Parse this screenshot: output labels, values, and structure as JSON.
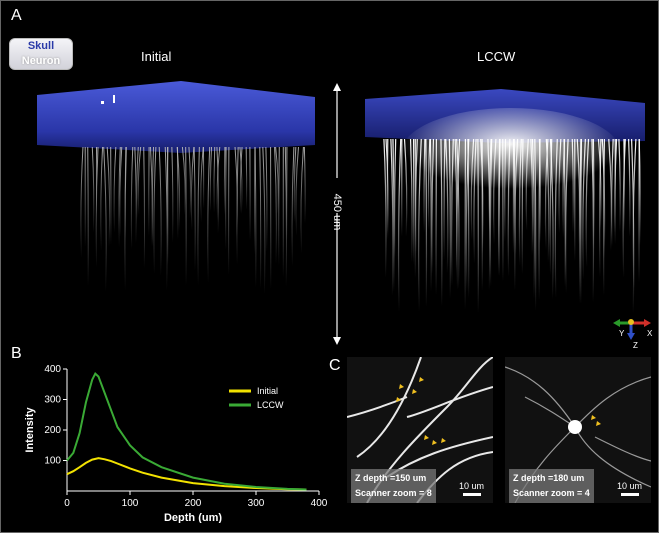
{
  "figure": {
    "panel_a": {
      "letter": "A",
      "legend": {
        "skull": "Skull",
        "neuron": "Neuron"
      },
      "initial_title": "Initial",
      "lccw_title": "LCCW",
      "depth_label": "450 um",
      "axes_icon": {
        "x": "X",
        "y": "Y",
        "z": "Z"
      },
      "colors": {
        "skull": "#2a36a8",
        "neuron": "#ffffff"
      }
    },
    "panel_b": {
      "letter": "B"
    },
    "panel_c": {
      "letter": "C",
      "left": {
        "line1": "Z depth =150 um",
        "line2": "Scanner zoom = 8",
        "scale": "10 um"
      },
      "right": {
        "line1": "Z depth =180 um",
        "line2": "Scanner zoom = 4",
        "scale": "10 um"
      }
    }
  },
  "chart_data": {
    "type": "line",
    "title": "",
    "xlabel": "Depth (um)",
    "ylabel": "Intensity",
    "xlim": [
      0,
      400
    ],
    "ylim": [
      0,
      400
    ],
    "xticks": [
      0,
      100,
      200,
      300,
      400
    ],
    "yticks": [
      100,
      200,
      300,
      400
    ],
    "legend_position": "top-right",
    "series": [
      {
        "name": "Initial",
        "color": "#f2e200",
        "x": [
          0,
          10,
          20,
          30,
          40,
          50,
          60,
          70,
          80,
          100,
          120,
          150,
          200,
          250,
          300,
          350,
          380
        ],
        "y": [
          55,
          65,
          78,
          92,
          103,
          108,
          104,
          98,
          90,
          74,
          60,
          44,
          26,
          16,
          10,
          6,
          5
        ]
      },
      {
        "name": "LCCW",
        "color": "#3aaa35",
        "x": [
          0,
          10,
          20,
          30,
          40,
          45,
          50,
          60,
          70,
          80,
          100,
          120,
          150,
          200,
          250,
          300,
          350,
          380
        ],
        "y": [
          100,
          125,
          190,
          290,
          365,
          385,
          375,
          320,
          265,
          210,
          150,
          110,
          78,
          44,
          24,
          13,
          7,
          5
        ]
      }
    ]
  }
}
